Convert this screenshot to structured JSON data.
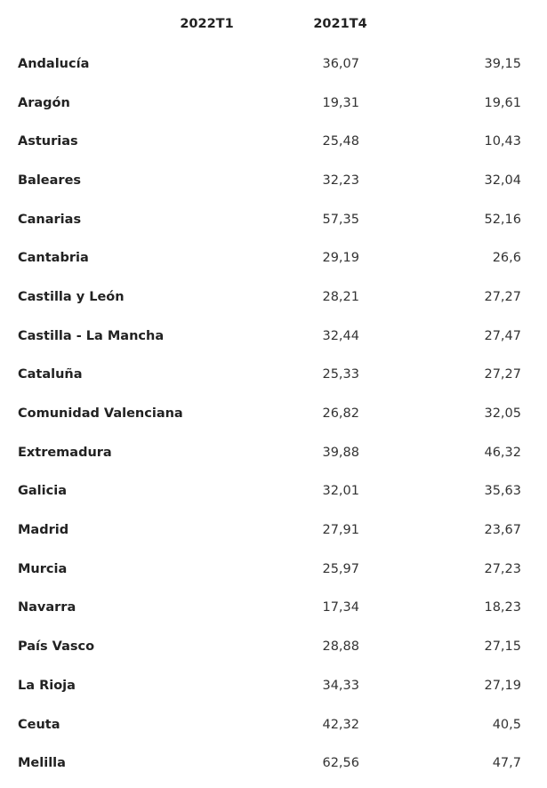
{
  "columns": {
    "col1": "2022T1",
    "col2": "2021T4"
  },
  "rows": [
    {
      "region": "Andalucía",
      "v1": "36,07",
      "v2": "39,15"
    },
    {
      "region": "Aragón",
      "v1": "19,31",
      "v2": "19,61"
    },
    {
      "region": "Asturias",
      "v1": "25,48",
      "v2": "10,43"
    },
    {
      "region": "Baleares",
      "v1": "32,23",
      "v2": "32,04"
    },
    {
      "region": "Canarias",
      "v1": "57,35",
      "v2": "52,16"
    },
    {
      "region": "Cantabria",
      "v1": "29,19",
      "v2": "26,6"
    },
    {
      "region": "Castilla y León",
      "v1": "28,21",
      "v2": "27,27"
    },
    {
      "region": "Castilla - La Mancha",
      "v1": "32,44",
      "v2": "27,47"
    },
    {
      "region": "Cataluña",
      "v1": "25,33",
      "v2": "27,27"
    },
    {
      "region": "Comunidad Valenciana",
      "v1": "26,82",
      "v2": "32,05"
    },
    {
      "region": "Extremadura",
      "v1": "39,88",
      "v2": "46,32"
    },
    {
      "region": "Galicia",
      "v1": "32,01",
      "v2": "35,63"
    },
    {
      "region": "Madrid",
      "v1": "27,91",
      "v2": "23,67"
    },
    {
      "region": "Murcia",
      "v1": "25,97",
      "v2": "27,23"
    },
    {
      "region": "Navarra",
      "v1": "17,34",
      "v2": "18,23"
    },
    {
      "region": "País Vasco",
      "v1": "28,88",
      "v2": "27,15"
    },
    {
      "region": "La Rioja",
      "v1": "34,33",
      "v2": "27,19"
    },
    {
      "region": "Ceuta",
      "v1": "42,32",
      "v2": "40,5"
    },
    {
      "region": "Melilla",
      "v1": "62,56",
      "v2": "47,7"
    }
  ]
}
